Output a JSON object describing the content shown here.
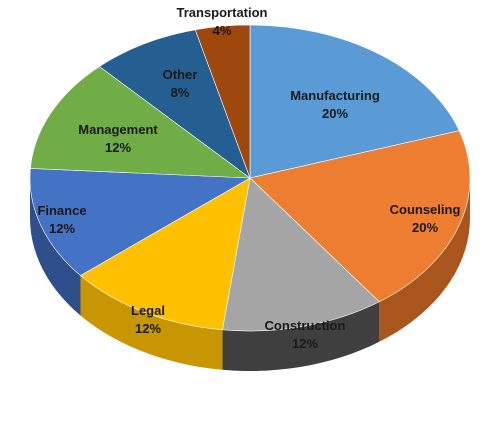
{
  "chart_data": {
    "type": "pie",
    "style": "3d",
    "title": "",
    "slices": [
      {
        "label": "Manufacturing",
        "value": 20,
        "value_label": "20%",
        "color": "#5B9BD5",
        "side_color": "#3C6E9E"
      },
      {
        "label": "Counseling",
        "value": 20,
        "value_label": "20%",
        "color": "#ED7D31",
        "side_color": "#A9551E"
      },
      {
        "label": "Construction",
        "value": 12,
        "value_label": "12%",
        "color": "#A5A5A5",
        "side_color": "#3F3F3F"
      },
      {
        "label": "Legal",
        "value": 12,
        "value_label": "12%",
        "color": "#FFC000",
        "side_color": "#C89600"
      },
      {
        "label": "Finance",
        "value": 12,
        "value_label": "12%",
        "color": "#4472C4",
        "side_color": "#2E4F8C"
      },
      {
        "label": "Management",
        "value": 12,
        "value_label": "12%",
        "color": "#70AD47",
        "side_color": "#4E7A31"
      },
      {
        "label": "Other",
        "value": 8,
        "value_label": "8%",
        "color": "#255E91",
        "side_color": "#17405F"
      },
      {
        "label": "Transportation",
        "value": 4,
        "value_label": "4%",
        "color": "#9E480E",
        "side_color": "#6A3009"
      }
    ]
  }
}
